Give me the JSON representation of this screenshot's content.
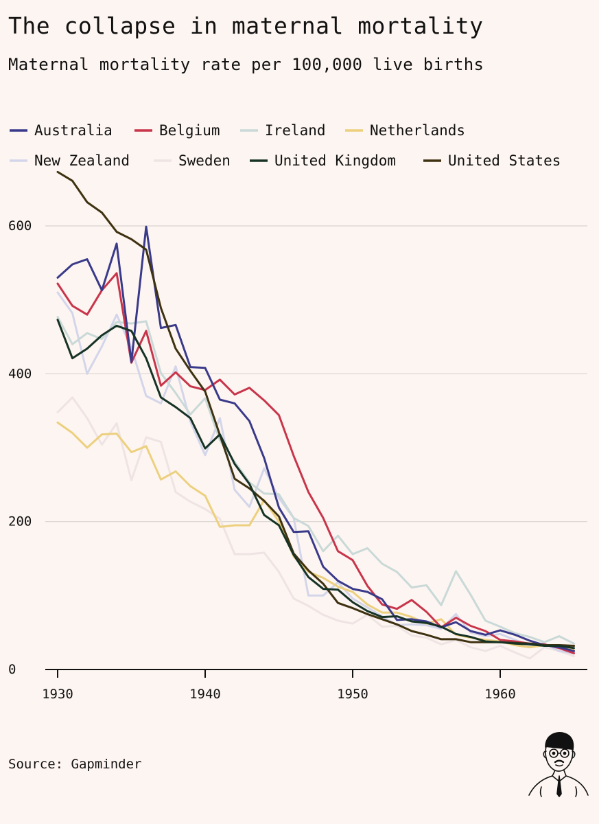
{
  "title": "The collapse in maternal mortality",
  "subtitle": "Maternal mortality rate per 100,000 live births",
  "source": "Source: Gapminder",
  "colors": {
    "background": "#fdf5f1",
    "gridline": "#d9d4d0",
    "axis": "#111111"
  },
  "chart_data": {
    "type": "line",
    "title": "The collapse in maternal mortality",
    "subtitle": "Maternal mortality rate per 100,000 live births",
    "xlabel": "",
    "ylabel": "",
    "xlim": [
      1930,
      1966
    ],
    "ylim": [
      0,
      600
    ],
    "x_ticks": [
      1930,
      1940,
      1950,
      1960
    ],
    "y_ticks": [
      0,
      200,
      400,
      600
    ],
    "grid": "horizontal",
    "legend_position": "top",
    "x": [
      1930,
      1931,
      1932,
      1933,
      1934,
      1935,
      1936,
      1937,
      1938,
      1939,
      1940,
      1941,
      1942,
      1943,
      1944,
      1945,
      1946,
      1947,
      1948,
      1949,
      1950,
      1951,
      1952,
      1953,
      1954,
      1955,
      1956,
      1957,
      1958,
      1959,
      1960,
      1961,
      1962,
      1963,
      1964,
      1965
    ],
    "series": [
      {
        "name": "Australia",
        "color": "#3a3a8a",
        "values": [
          530,
          548,
          555,
          513,
          576,
          416,
          599,
          462,
          466,
          409,
          408,
          365,
          360,
          336,
          286,
          219,
          186,
          187,
          139,
          120,
          109,
          105,
          95,
          67,
          68,
          65,
          57,
          64,
          52,
          47,
          53,
          47,
          39,
          33,
          30,
          25
        ]
      },
      {
        "name": "Belgium",
        "color": "#c8354b",
        "values": [
          522,
          492,
          480,
          513,
          536,
          415,
          458,
          384,
          402,
          383,
          378,
          392,
          372,
          381,
          364,
          344,
          289,
          240,
          205,
          160,
          148,
          113,
          88,
          82,
          94,
          78,
          57,
          70,
          59,
          52,
          40,
          38,
          35,
          34,
          29,
          22
        ]
      },
      {
        "name": "Ireland",
        "color": "#c9d9d8",
        "values": [
          477,
          440,
          455,
          447,
          470,
          468,
          471,
          401,
          374,
          345,
          367,
          310,
          281,
          253,
          238,
          237,
          205,
          194,
          160,
          181,
          156,
          164,
          143,
          132,
          111,
          114,
          87,
          133,
          101,
          66,
          58,
          49,
          44,
          37,
          45,
          35
        ]
      },
      {
        "name": "Netherlands",
        "color": "#ecd07e",
        "values": [
          334,
          320,
          300,
          318,
          319,
          294,
          302,
          257,
          268,
          248,
          235,
          193,
          195,
          195,
          229,
          200,
          153,
          132,
          124,
          112,
          105,
          88,
          77,
          77,
          71,
          62,
          68,
          47,
          43,
          40,
          38,
          33,
          30,
          33,
          30,
          26
        ]
      },
      {
        "name": "New Zealand",
        "color": "#d3d5ea",
        "values": [
          510,
          482,
          400,
          437,
          480,
          435,
          370,
          360,
          410,
          335,
          290,
          340,
          243,
          220,
          272,
          232,
          205,
          100,
          100,
          118,
          96,
          84,
          72,
          60,
          61,
          60,
          55,
          75,
          50,
          45,
          48,
          40,
          33,
          35,
          25,
          22
        ]
      },
      {
        "name": "Sweden",
        "color": "#efe4e4",
        "values": [
          348,
          368,
          340,
          304,
          333,
          256,
          314,
          308,
          240,
          227,
          217,
          204,
          156,
          156,
          158,
          132,
          96,
          86,
          74,
          66,
          62,
          74,
          58,
          59,
          46,
          43,
          34,
          40,
          30,
          25,
          32,
          23,
          15,
          30,
          25,
          18
        ]
      },
      {
        "name": "United Kingdom",
        "color": "#163326",
        "values": [
          473,
          421,
          434,
          452,
          465,
          458,
          421,
          368,
          355,
          340,
          299,
          318,
          278,
          251,
          209,
          195,
          155,
          125,
          109,
          108,
          91,
          79,
          71,
          72,
          65,
          63,
          58,
          48,
          44,
          38,
          37,
          35,
          34,
          32,
          32,
          29
        ]
      },
      {
        "name": "United States",
        "color": "#3e3211",
        "values": [
          673,
          661,
          632,
          618,
          592,
          582,
          568,
          489,
          434,
          404,
          376,
          317,
          258,
          245,
          228,
          207,
          157,
          134,
          116,
          90,
          83,
          75,
          68,
          61,
          52,
          47,
          41,
          41,
          37,
          37,
          37,
          36,
          35,
          33,
          33,
          32
        ]
      }
    ]
  }
}
